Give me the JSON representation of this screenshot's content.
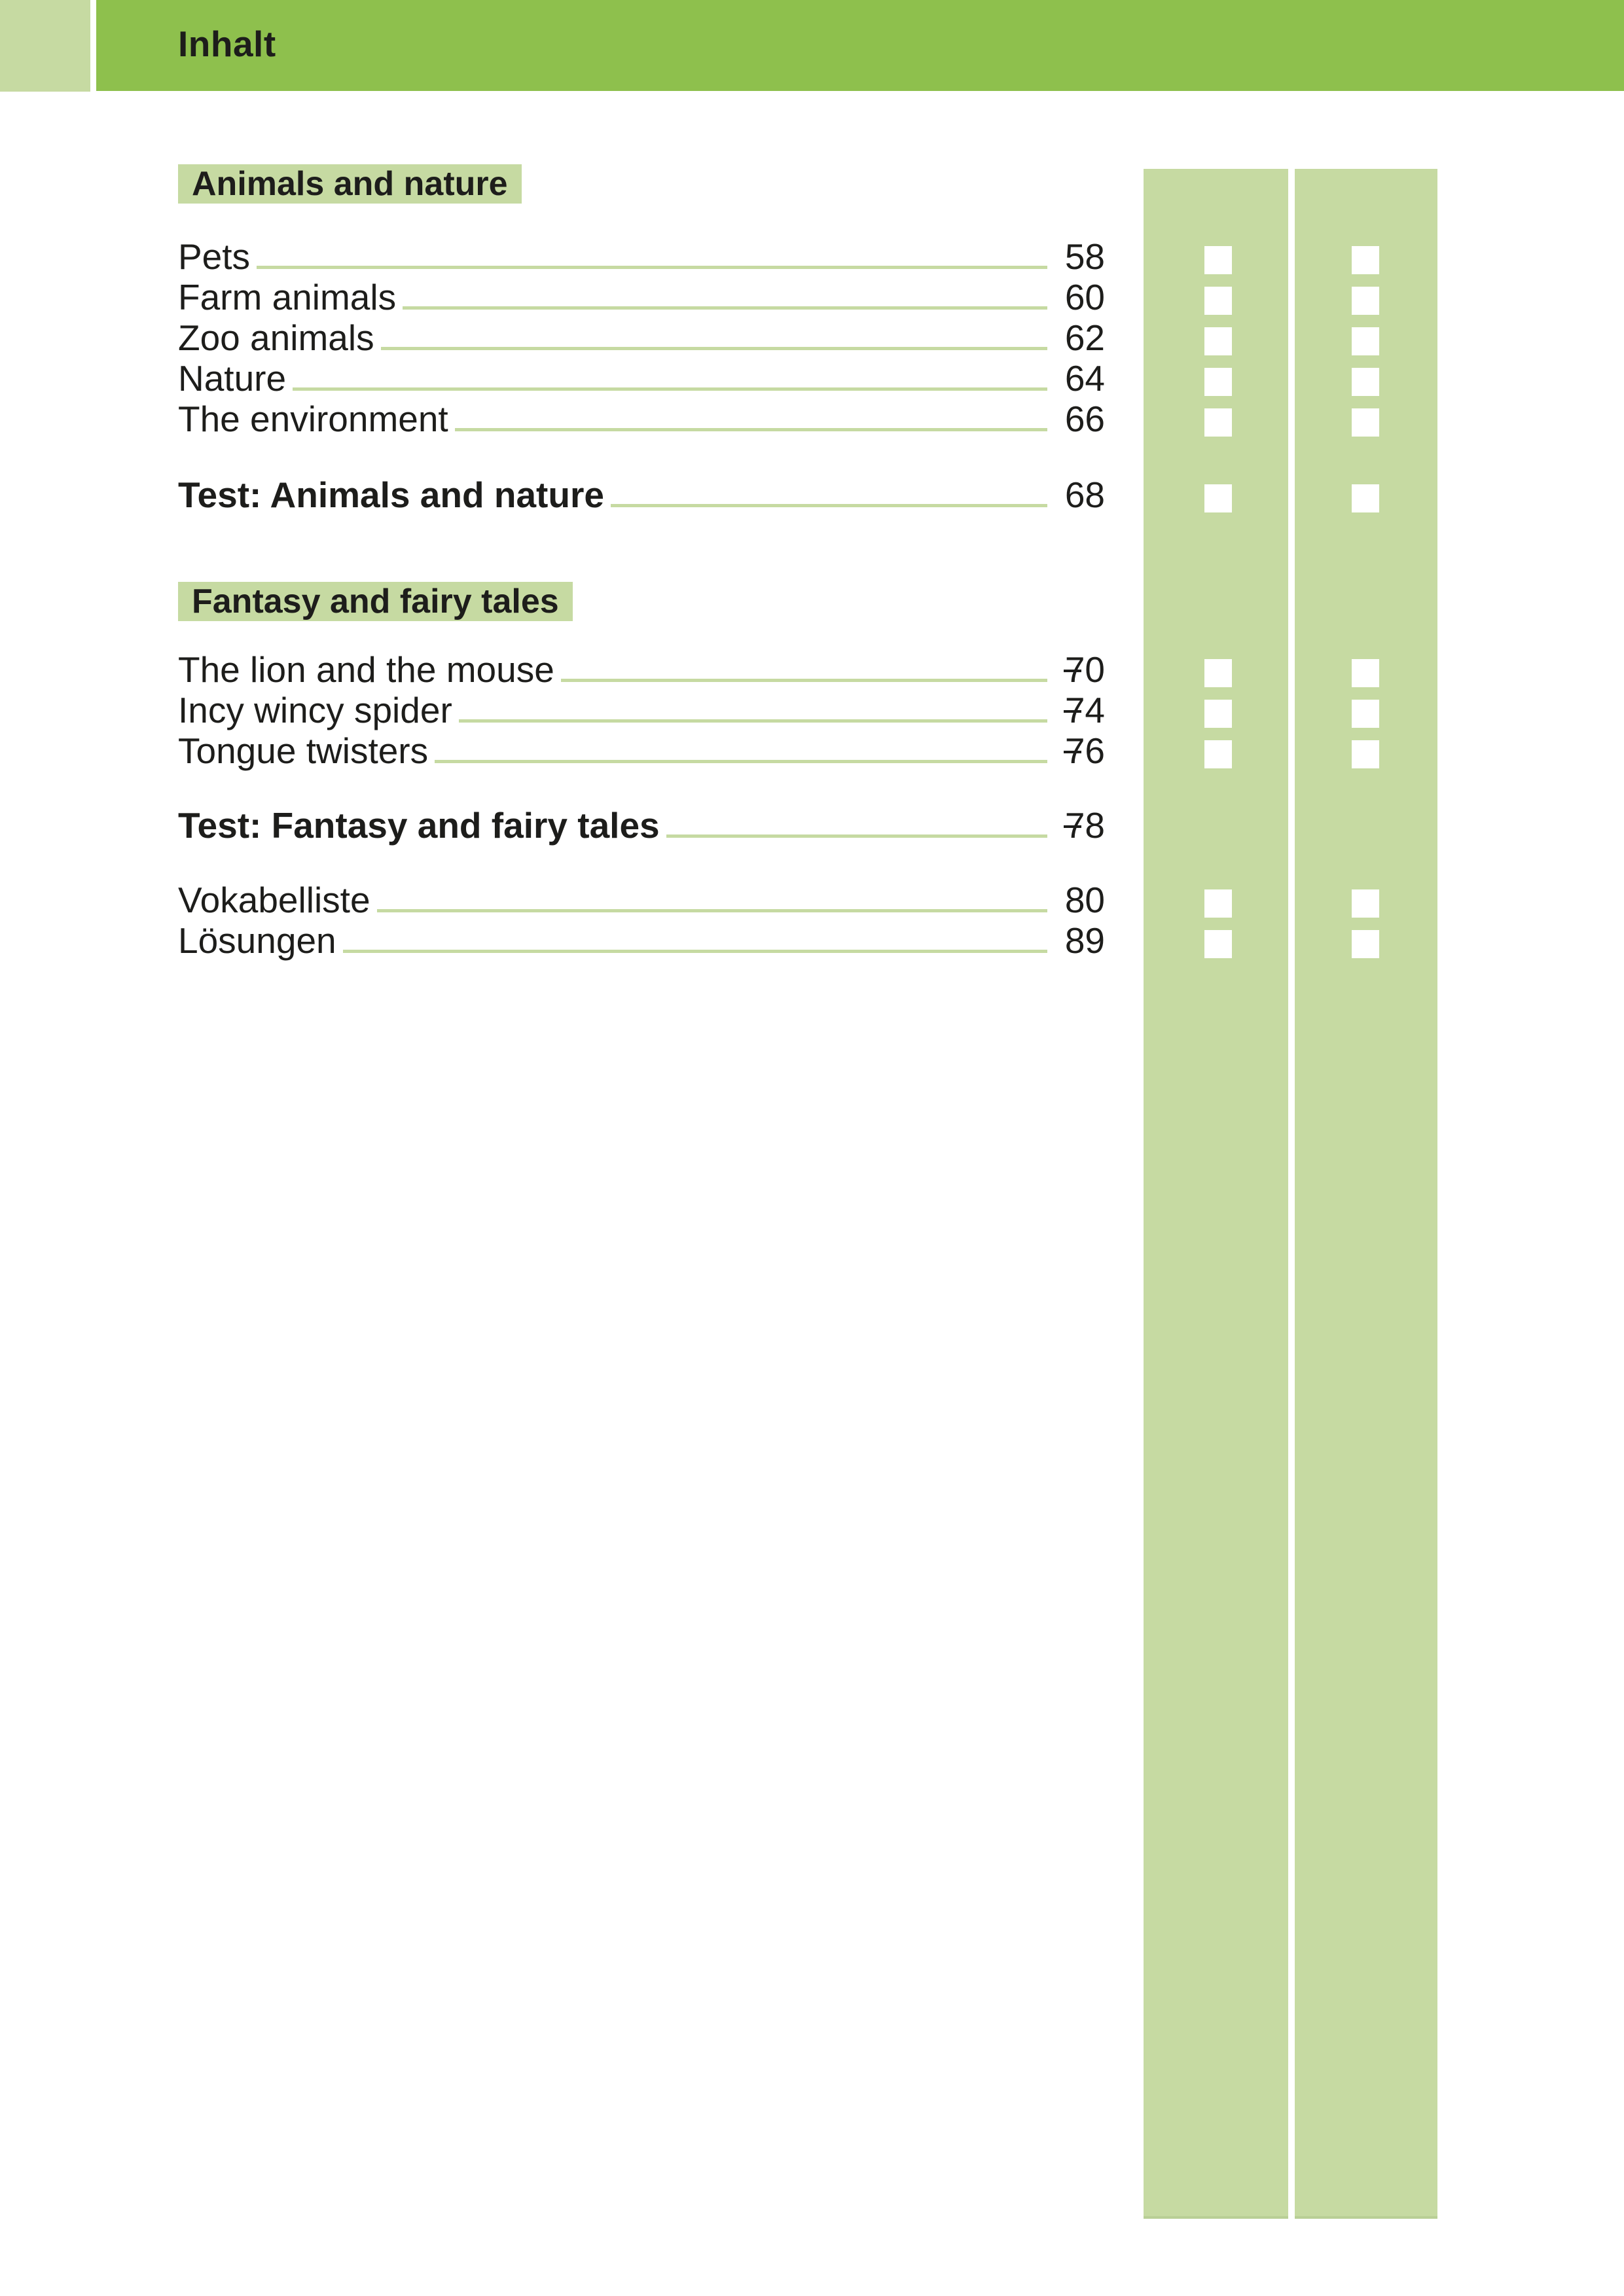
{
  "header": {
    "title": "Inhalt"
  },
  "colors": {
    "header_green": "#8ec04d",
    "light_green": "#c6daa2",
    "text_dark": "#1d1d1b",
    "checkbox_white": "#ffffff"
  },
  "sections": [
    {
      "heading": "Animals and nature",
      "entries": [
        {
          "title": "Pets",
          "page": "58",
          "bold": false,
          "checkboxes": true
        },
        {
          "title": "Farm animals",
          "page": "60",
          "bold": false,
          "checkboxes": true
        },
        {
          "title": "Zoo animals",
          "page": "62",
          "bold": false,
          "checkboxes": true
        },
        {
          "title": "Nature",
          "page": "64",
          "bold": false,
          "checkboxes": true
        },
        {
          "title": "The environment",
          "page": "66",
          "bold": false,
          "checkboxes": true
        },
        {
          "title": "Test: Animals and nature",
          "page": "68",
          "bold": true,
          "checkboxes": true
        }
      ]
    },
    {
      "heading": "Fantasy and fairy tales",
      "entries": [
        {
          "title": "The lion and the mouse",
          "page": "70",
          "bold": false,
          "checkboxes": true
        },
        {
          "title": "Incy wincy spider",
          "page": "74",
          "bold": false,
          "checkboxes": true
        },
        {
          "title": "Tongue twisters",
          "page": "76",
          "bold": false,
          "checkboxes": true
        },
        {
          "title": "Test: Fantasy and fairy tales",
          "page": "78",
          "bold": true,
          "checkboxes": false
        }
      ]
    },
    {
      "heading": "",
      "entries": [
        {
          "title": "Vokabelliste",
          "page": "80",
          "bold": false,
          "checkboxes": true
        },
        {
          "title": "Lösungen",
          "page": "89",
          "bold": false,
          "checkboxes": true
        }
      ]
    }
  ]
}
